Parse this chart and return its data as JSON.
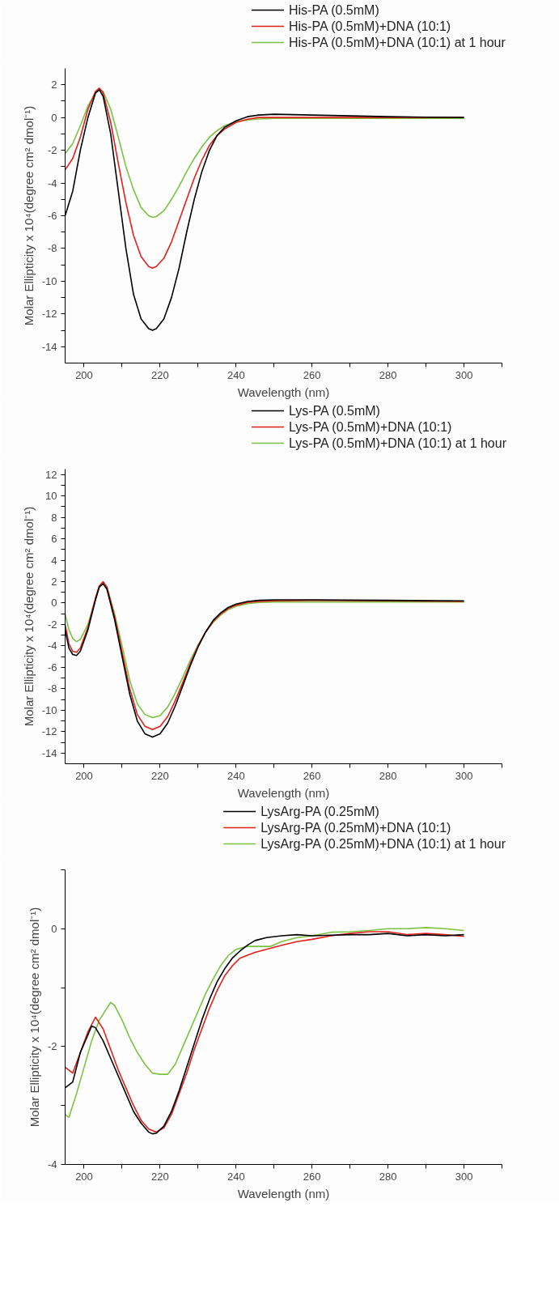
{
  "chart_data": [
    {
      "type": "line",
      "xlabel": "Wavelength (nm)",
      "ylabel": "Molar Ellipticity x 10⁴(degree cm² dmol⁻¹)",
      "xlim": [
        195,
        310
      ],
      "ylim": [
        -15,
        3
      ],
      "xticks": [
        200,
        {
          "value": 210,
          "label": null
        },
        220,
        {
          "value": 230,
          "label": null
        },
        240,
        {
          "value": 250,
          "label": null
        },
        260,
        {
          "value": 270,
          "label": null
        },
        280,
        {
          "value": 290,
          "label": null
        },
        300,
        {
          "value": 310,
          "label": null
        }
      ],
      "yticks": [
        -14,
        {
          "value": -13,
          "label": null
        },
        -12,
        {
          "value": -11,
          "label": null
        },
        -10,
        {
          "value": -9,
          "label": null
        },
        -8,
        {
          "value": -7,
          "label": null
        },
        -6,
        {
          "value": -5,
          "label": null
        },
        -4,
        {
          "value": -3,
          "label": null
        },
        -2,
        {
          "value": -1,
          "label": null
        },
        0,
        {
          "value": 1,
          "label": null
        },
        2
      ],
      "grid": false,
      "legend": "top right",
      "line_style": "solid",
      "marker": "none",
      "series": [
        {
          "name": "His-PA (0.5mM)",
          "color": "#000000",
          "x": [
            195,
            197,
            199,
            201,
            203,
            204,
            205,
            207,
            209,
            211,
            213,
            215,
            217,
            218,
            219,
            221,
            223,
            225,
            227,
            229,
            231,
            233,
            235,
            237,
            240,
            243,
            246,
            250,
            260,
            270,
            280,
            290,
            300
          ],
          "values": [
            -6,
            -4.5,
            -2,
            0,
            1.5,
            1.7,
            1.3,
            -1,
            -4.5,
            -8,
            -10.8,
            -12.3,
            -12.9,
            -13,
            -12.9,
            -12.3,
            -11,
            -9.2,
            -7,
            -5,
            -3.3,
            -2,
            -1.1,
            -0.6,
            -0.2,
            0.05,
            0.15,
            0.2,
            0.15,
            0.1,
            0.05,
            0.02,
            0
          ]
        },
        {
          "name": "His-PA (0.5mM)+DNA (10:1)",
          "color": "#e0201b",
          "x": [
            195,
            197,
            199,
            201,
            203,
            204,
            205,
            207,
            209,
            211,
            213,
            215,
            217,
            218,
            219,
            221,
            223,
            225,
            227,
            229,
            231,
            233,
            235,
            237,
            240,
            243,
            246,
            250,
            260,
            280,
            300
          ],
          "values": [
            -3.2,
            -2.5,
            -1.2,
            0.5,
            1.6,
            1.8,
            1.5,
            -0.3,
            -2.8,
            -5.2,
            -7.2,
            -8.5,
            -9.1,
            -9.2,
            -9.1,
            -8.6,
            -7.6,
            -6.3,
            -5,
            -3.7,
            -2.6,
            -1.7,
            -1.1,
            -0.7,
            -0.3,
            -0.1,
            0,
            0,
            0,
            0,
            0
          ]
        },
        {
          "name": "His-PA (0.5mM)+DNA (10:1) at 1 hour",
          "color": "#7cc242",
          "x": [
            195,
            197,
            199,
            201,
            203,
            204,
            205,
            207,
            209,
            211,
            213,
            215,
            217,
            218,
            219,
            221,
            223,
            225,
            227,
            229,
            231,
            233,
            235,
            237,
            240,
            245,
            250,
            260,
            280,
            300
          ],
          "values": [
            -2.2,
            -1.6,
            -0.5,
            0.7,
            1.5,
            1.7,
            1.6,
            0.5,
            -1.2,
            -3,
            -4.4,
            -5.5,
            -6,
            -6.1,
            -6.05,
            -5.7,
            -5,
            -4.2,
            -3.3,
            -2.5,
            -1.8,
            -1.2,
            -0.8,
            -0.5,
            -0.25,
            -0.1,
            -0.05,
            -0.05,
            -0.05,
            -0.05
          ]
        }
      ]
    },
    {
      "type": "line",
      "xlabel": "Wavelength (nm)",
      "ylabel": "Molar Ellipticity x 10⁴(degree cm² dmol⁻¹)",
      "xlim": [
        195,
        310
      ],
      "ylim": [
        -15,
        12.5
      ],
      "xticks": [
        200,
        {
          "value": 210,
          "label": null
        },
        220,
        {
          "value": 230,
          "label": null
        },
        240,
        {
          "value": 250,
          "label": null
        },
        260,
        {
          "value": 270,
          "label": null
        },
        280,
        {
          "value": 290,
          "label": null
        },
        300,
        {
          "value": 310,
          "label": null
        }
      ],
      "yticks": [
        -14,
        {
          "value": -13,
          "label": null
        },
        -12,
        {
          "value": -11,
          "label": null
        },
        -10,
        {
          "value": -9,
          "label": null
        },
        -8,
        {
          "value": -7,
          "label": null
        },
        -6,
        {
          "value": -5,
          "label": null
        },
        -4,
        {
          "value": -3,
          "label": null
        },
        -2,
        {
          "value": -1,
          "label": null
        },
        0,
        {
          "value": 1,
          "label": null
        },
        2,
        {
          "value": 3,
          "label": null
        },
        4,
        {
          "value": 5,
          "label": null
        },
        6,
        {
          "value": 7,
          "label": null
        },
        8,
        {
          "value": 9,
          "label": null
        },
        10,
        {
          "value": 11,
          "label": null
        },
        12
      ],
      "grid": false,
      "legend": "top right",
      "line_style": "solid",
      "marker": "none",
      "series": [
        {
          "name": "Lys-PA (0.5mM)",
          "color": "#000000",
          "x": [
            195,
            196,
            197,
            198,
            199,
            201,
            203,
            204,
            205,
            206,
            208,
            210,
            212,
            214,
            216,
            218,
            220,
            222,
            224,
            226,
            228,
            230,
            232,
            234,
            236,
            238,
            240,
            243,
            246,
            250,
            260,
            280,
            300
          ],
          "values": [
            -2.5,
            -4.2,
            -4.8,
            -4.9,
            -4.5,
            -2.5,
            0.3,
            1.5,
            1.8,
            1.3,
            -1.5,
            -5,
            -8.5,
            -11,
            -12.2,
            -12.5,
            -12.2,
            -11.2,
            -9.6,
            -7.7,
            -5.8,
            -4.1,
            -2.7,
            -1.6,
            -0.9,
            -0.4,
            -0.1,
            0.15,
            0.25,
            0.3,
            0.3,
            0.25,
            0.2
          ]
        },
        {
          "name": "Lys-PA (0.5mM)+DNA (10:1)",
          "color": "#e0201b",
          "x": [
            195,
            196,
            197,
            198,
            199,
            201,
            203,
            204,
            205,
            206,
            208,
            210,
            212,
            214,
            216,
            218,
            220,
            222,
            224,
            226,
            228,
            230,
            232,
            234,
            236,
            238,
            240,
            243,
            246,
            250,
            260,
            280,
            300
          ],
          "values": [
            -2,
            -3.8,
            -4.5,
            -4.6,
            -4.2,
            -2.3,
            0.5,
            1.6,
            2,
            1.5,
            -1.2,
            -4.6,
            -8,
            -10.4,
            -11.5,
            -11.8,
            -11.5,
            -10.6,
            -9.1,
            -7.4,
            -5.6,
            -4,
            -2.7,
            -1.7,
            -1,
            -0.5,
            -0.2,
            0.05,
            0.15,
            0.2,
            0.25,
            0.2,
            0.15
          ]
        },
        {
          "name": "Lys-PA (0.5mM)+DNA (10:1) at 1 hour",
          "color": "#7cc242",
          "x": [
            195,
            196,
            197,
            198,
            199,
            201,
            203,
            204,
            205,
            206,
            208,
            210,
            212,
            214,
            216,
            218,
            220,
            222,
            224,
            226,
            228,
            230,
            232,
            234,
            236,
            238,
            240,
            243,
            246,
            250,
            260,
            280,
            300
          ],
          "values": [
            -1,
            -2.5,
            -3.3,
            -3.6,
            -3.4,
            -2,
            0.4,
            1.5,
            1.9,
            1.5,
            -1,
            -4,
            -7.2,
            -9.4,
            -10.4,
            -10.7,
            -10.5,
            -9.7,
            -8.4,
            -6.9,
            -5.3,
            -3.9,
            -2.7,
            -1.8,
            -1.1,
            -0.6,
            -0.3,
            -0.05,
            0.05,
            0.1,
            0.1,
            0.1,
            0.1
          ]
        }
      ]
    },
    {
      "type": "line",
      "xlabel": "Wavelength (nm)",
      "ylabel": "Molar Ellipticity x 10⁴(degree cm² dmol⁻¹)",
      "xlim": [
        195,
        310
      ],
      "ylim": [
        -4,
        1
      ],
      "xticks": [
        200,
        {
          "value": 210,
          "label": null
        },
        220,
        {
          "value": 230,
          "label": null
        },
        240,
        {
          "value": 250,
          "label": null
        },
        260,
        {
          "value": 270,
          "label": null
        },
        280,
        {
          "value": 290,
          "label": null
        },
        300,
        {
          "value": 310,
          "label": null
        }
      ],
      "yticks": [
        -4,
        {
          "value": -3,
          "label": null
        },
        -2,
        {
          "value": -1,
          "label": null
        },
        0,
        {
          "value": 1,
          "label": null
        }
      ],
      "grid": false,
      "legend": "top right",
      "line_style": "solid",
      "marker": "none",
      "series": [
        {
          "name": "LysArg-PA (0.25mM)",
          "color": "#000000",
          "x": [
            195,
            197,
            199,
            201,
            202,
            203,
            205,
            207,
            209,
            211,
            213,
            215,
            217,
            218,
            219,
            221,
            223,
            225,
            227,
            229,
            231,
            233,
            235,
            237,
            239,
            241,
            243,
            245,
            248,
            252,
            256,
            260,
            265,
            270,
            275,
            280,
            285,
            290,
            295,
            300
          ],
          "values": [
            -2.7,
            -2.6,
            -2.1,
            -1.8,
            -1.65,
            -1.68,
            -1.9,
            -2.2,
            -2.5,
            -2.8,
            -3.1,
            -3.3,
            -3.45,
            -3.48,
            -3.47,
            -3.35,
            -3.1,
            -2.75,
            -2.35,
            -1.95,
            -1.55,
            -1.2,
            -0.9,
            -0.68,
            -0.5,
            -0.38,
            -0.28,
            -0.2,
            -0.15,
            -0.12,
            -0.1,
            -0.12,
            -0.11,
            -0.1,
            -0.1,
            -0.08,
            -0.12,
            -0.1,
            -0.12,
            -0.1
          ]
        },
        {
          "name": "LysArg-PA (0.25mM)+DNA (10:1)",
          "color": "#e0201b",
          "x": [
            195,
            197,
            199,
            201,
            203,
            205,
            207,
            209,
            211,
            213,
            215,
            217,
            219,
            221,
            223,
            225,
            227,
            229,
            231,
            233,
            235,
            237,
            239,
            241,
            243,
            245,
            248,
            252,
            256,
            260,
            265,
            270,
            275,
            280,
            285,
            290,
            295,
            300
          ],
          "values": [
            -2.35,
            -2.45,
            -2.1,
            -1.75,
            -1.5,
            -1.7,
            -2.05,
            -2.4,
            -2.7,
            -3,
            -3.25,
            -3.4,
            -3.45,
            -3.38,
            -3.15,
            -2.8,
            -2.45,
            -2.05,
            -1.7,
            -1.35,
            -1.05,
            -0.8,
            -0.63,
            -0.5,
            -0.45,
            -0.4,
            -0.35,
            -0.28,
            -0.22,
            -0.18,
            -0.12,
            -0.08,
            -0.05,
            -0.05,
            -0.1,
            -0.08,
            -0.1,
            -0.13
          ]
        },
        {
          "name": "LysArg-PA (0.25mM)+DNA (10:1) at 1 hour",
          "color": "#7cc242",
          "x": [
            195,
            196,
            198,
            200,
            202,
            204,
            206,
            207,
            208,
            210,
            212,
            214,
            216,
            218,
            220,
            222,
            224,
            226,
            228,
            230,
            232,
            234,
            236,
            238,
            240,
            243,
            246,
            249,
            252,
            256,
            260,
            265,
            270,
            275,
            280,
            285,
            290,
            295,
            300
          ],
          "values": [
            -3.15,
            -3.2,
            -2.8,
            -2.35,
            -1.9,
            -1.55,
            -1.35,
            -1.25,
            -1.3,
            -1.55,
            -1.85,
            -2.1,
            -2.3,
            -2.45,
            -2.47,
            -2.47,
            -2.3,
            -2,
            -1.7,
            -1.4,
            -1.1,
            -0.85,
            -0.62,
            -0.45,
            -0.35,
            -0.3,
            -0.3,
            -0.3,
            -0.22,
            -0.15,
            -0.12,
            -0.06,
            -0.05,
            -0.03,
            0,
            0,
            0.02,
            0,
            -0.03
          ]
        }
      ]
    }
  ]
}
